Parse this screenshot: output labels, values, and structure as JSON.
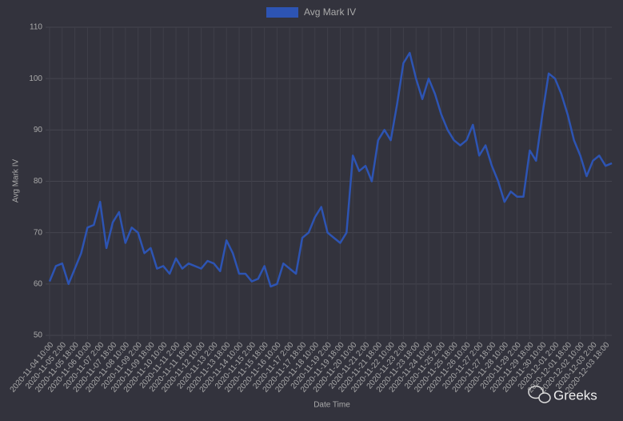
{
  "chart_data": {
    "type": "line",
    "title": null,
    "xlabel": "Date Time",
    "ylabel": "Avg Mark IV",
    "categories": [
      "2020-11-04 10:00",
      null,
      "2020-11-05 2:00",
      null,
      "2020-11-05 18:00",
      null,
      "2020-11-06 10:00",
      null,
      "2020-11-07 2:00",
      null,
      "2020-11-07 18:00",
      null,
      "2020-11-08 10:00",
      null,
      "2020-11-09 2:00",
      null,
      "2020-11-09 18:00",
      null,
      "2020-11-10 10:00",
      null,
      "2020-11-11 2:00",
      null,
      "2020-11-11 18:00",
      null,
      "2020-11-12 10:00",
      null,
      "2020-11-13 2:00",
      null,
      "2020-11-13 18:00",
      null,
      "2020-11-14 10:00",
      null,
      "2020-11-15 2:00",
      null,
      "2020-11-15 18:00",
      null,
      "2020-11-16 10:00",
      null,
      "2020-11-17 2:00",
      null,
      "2020-11-17 18:00",
      null,
      "2020-11-18 10:00",
      null,
      "2020-11-19 2:00",
      null,
      "2020-11-19 18:00",
      null,
      "2020-11-20 10:00",
      null,
      "2020-11-21 2:00",
      null,
      "2020-11-21 18:00",
      null,
      "2020-11-22 10:00",
      null,
      "2020-11-23 2:00",
      null,
      "2020-11-23 18:00",
      null,
      "2020-11-24 10:00",
      null,
      "2020-11-25 2:00",
      null,
      "2020-11-25 18:00",
      null,
      "2020-11-26 10:00",
      null,
      "2020-11-27 2:00",
      null,
      "2020-11-27 18:00",
      null,
      "2020-11-28 10:00",
      null,
      "2020-11-29 2:00",
      null,
      "2020-11-29 18:00",
      null,
      "2020-11-30 10:00",
      null,
      "2020-12-01 2:00",
      null,
      "2020-12-01 18:00",
      null,
      "2020-12-02 10:00",
      null,
      "2020-12-03 2:00",
      null,
      "2020-12-03 18:00",
      null
    ],
    "series": [
      {
        "name": "Avg Mark IV",
        "color": "#2d54b3",
        "values": [
          60.5,
          63.5,
          64,
          60,
          63,
          66,
          71,
          71.5,
          76,
          67,
          72,
          74,
          68,
          71,
          70,
          66,
          67,
          63,
          63.5,
          62,
          65,
          63,
          64,
          63.5,
          63,
          64.5,
          64,
          62.5,
          68.5,
          66,
          62,
          62,
          60.5,
          61,
          63.5,
          59.5,
          60,
          64,
          63,
          62,
          69,
          70,
          73,
          75,
          70,
          69,
          68,
          70,
          85,
          82,
          83,
          80,
          88,
          90,
          88,
          95,
          103,
          105,
          100,
          96,
          100,
          97,
          93,
          90,
          88,
          87,
          88,
          91,
          85,
          87,
          83,
          80,
          76,
          78,
          77,
          77,
          86,
          84,
          93,
          101,
          100,
          97,
          93,
          88,
          85,
          81,
          84,
          85,
          83,
          83.5
        ]
      }
    ],
    "ylim": [
      50,
      110
    ],
    "yticks": [
      50,
      60,
      70,
      80,
      90,
      100,
      110
    ],
    "grid": true,
    "legend": "top"
  },
  "watermark": "Greeks"
}
